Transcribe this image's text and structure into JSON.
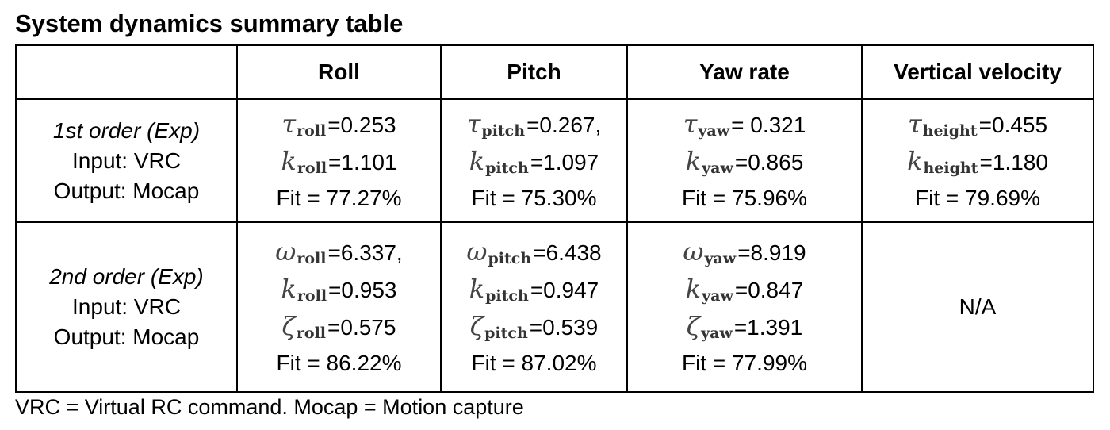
{
  "title": "System dynamics summary table",
  "columns": [
    "",
    "Roll",
    "Pitch",
    "Yaw rate",
    "Vertical velocity"
  ],
  "rows": [
    {
      "label": {
        "order": "1st order (Exp)",
        "input": "Input: VRC",
        "output": "Output: Mocap"
      },
      "cells": [
        {
          "lines": [
            {
              "sym": "τ",
              "sub": "roll",
              "val": "=0.253"
            },
            {
              "sym": "k",
              "sub": "roll",
              "val": "=1.101"
            },
            {
              "sym": "",
              "sub": "",
              "val": "Fit = 77.27%"
            }
          ]
        },
        {
          "lines": [
            {
              "sym": "τ",
              "sub": "pitch",
              "val": "=0.267,"
            },
            {
              "sym": "k",
              "sub": "pitch",
              "val": "=1.097"
            },
            {
              "sym": "",
              "sub": "",
              "val": "Fit = 75.30%"
            }
          ]
        },
        {
          "lines": [
            {
              "sym": "τ",
              "sub": "yaw",
              "val": "= 0.321"
            },
            {
              "sym": "k",
              "sub": "yaw",
              "val": "=0.865"
            },
            {
              "sym": "",
              "sub": "",
              "val": "Fit = 75.96%"
            }
          ]
        },
        {
          "lines": [
            {
              "sym": "τ",
              "sub": "height",
              "val": "=0.455"
            },
            {
              "sym": "k",
              "sub": "height",
              "val": "=1.180"
            },
            {
              "sym": "",
              "sub": "",
              "val": "Fit = 79.69%"
            }
          ]
        }
      ]
    },
    {
      "label": {
        "order": "2nd order (Exp)",
        "input": "Input: VRC",
        "output": "Output: Mocap"
      },
      "cells": [
        {
          "lines": [
            {
              "sym": "ω",
              "sub": "roll",
              "val": "=6.337,"
            },
            {
              "sym": "k",
              "sub": "roll",
              "val": "=0.953"
            },
            {
              "sym": "ζ",
              "sub": "roll",
              "val": "=0.575"
            },
            {
              "sym": "",
              "sub": "",
              "val": "Fit = 86.22%"
            }
          ]
        },
        {
          "lines": [
            {
              "sym": "ω",
              "sub": "pitch",
              "val": "=6.438"
            },
            {
              "sym": "k",
              "sub": "pitch",
              "val": "=0.947"
            },
            {
              "sym": "ζ",
              "sub": "pitch",
              "val": "=0.539"
            },
            {
              "sym": "",
              "sub": "",
              "val": "Fit = 87.02%"
            }
          ]
        },
        {
          "lines": [
            {
              "sym": "ω",
              "sub": "yaw",
              "val": "=8.919"
            },
            {
              "sym": "k",
              "sub": "yaw",
              "val": "=0.847"
            },
            {
              "sym": "ζ",
              "sub": "yaw",
              "val": "=1.391"
            },
            {
              "sym": "",
              "sub": "",
              "val": "Fit = 77.99%"
            }
          ]
        },
        {
          "na": "N/A"
        }
      ]
    }
  ],
  "footnote": "VRC = Virtual RC command. Mocap = Motion capture"
}
